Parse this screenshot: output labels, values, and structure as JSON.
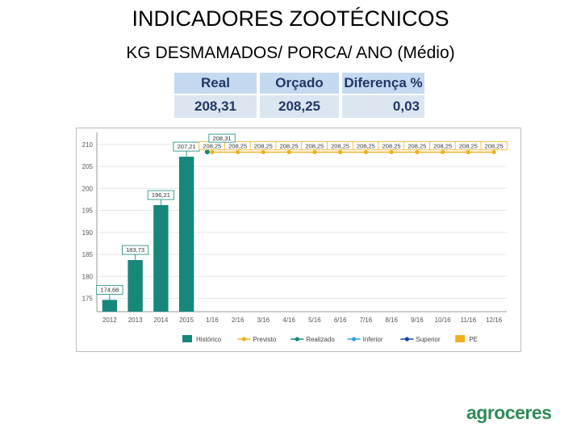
{
  "header": {
    "title": "INDICADORES ZOOTÉCNICOS",
    "subtitle": "KG DESMAMADOS/ PORCA/ ANO (Médio)"
  },
  "summary_table": {
    "headers": [
      "Real",
      "Orçado",
      "Diferença %"
    ],
    "values": [
      "208,31",
      "208,25",
      "0,03"
    ]
  },
  "logo_text": "agroceres",
  "chart_data": {
    "type": "bar",
    "title": "",
    "xlabel": "",
    "ylabel": "",
    "ylim": [
      172,
      212
    ],
    "y_ticks": [
      175,
      180,
      185,
      190,
      195,
      200,
      205,
      210
    ],
    "y_tick_labels": [
      "175",
      "180",
      "185",
      "190",
      "195",
      "200",
      "205",
      "210"
    ],
    "categories": [
      "2012",
      "2013",
      "2014",
      "2015",
      "1/16",
      "2/16",
      "3/16",
      "4/16",
      "5/16",
      "6/16",
      "7/16",
      "8/16",
      "9/16",
      "10/16",
      "11/16",
      "12/16"
    ],
    "series": [
      {
        "name": "Histórico",
        "type": "bar",
        "color": "#17877c",
        "values": [
          174.68,
          183.73,
          196.21,
          207.21,
          null,
          null,
          null,
          null,
          null,
          null,
          null,
          null,
          null,
          null,
          null,
          null
        ],
        "labels": [
          "174,68",
          "183,73",
          "196,21",
          "207,21",
          "",
          "",
          "",
          "",
          "",
          "",
          "",
          "",
          "",
          "",
          "",
          ""
        ]
      },
      {
        "name": "Previsto",
        "type": "line",
        "color": "#f0b020",
        "values": [
          null,
          null,
          null,
          null,
          208.25,
          208.25,
          208.25,
          208.25,
          208.25,
          208.25,
          208.25,
          208.25,
          208.25,
          208.25,
          208.25,
          208.25
        ],
        "labels": [
          "",
          "",
          "",
          "",
          "208,25",
          "208,25",
          "208,25",
          "208,25",
          "208,25",
          "208,25",
          "208,25",
          "208,25",
          "208,25",
          "208,25",
          "208,25",
          "208,25"
        ]
      },
      {
        "name": "Realizado",
        "type": "point",
        "color": "#17877c",
        "values": [
          null,
          null,
          null,
          null,
          208.31,
          null,
          null,
          null,
          null,
          null,
          null,
          null,
          null,
          null,
          null,
          null
        ],
        "labels": [
          "",
          "",
          "",
          "",
          "208,31",
          "",
          "",
          "",
          "",
          "",
          "",
          "",
          "",
          "",
          "",
          ""
        ]
      }
    ],
    "legend": {
      "position": "bottom",
      "entries": [
        {
          "name": "Histórico",
          "kind": "rect",
          "color": "#17877c"
        },
        {
          "name": "Previsto",
          "kind": "line",
          "color": "#f0b020"
        },
        {
          "name": "Realizado",
          "kind": "line",
          "color": "#17877c"
        },
        {
          "name": "Inferior",
          "kind": "line",
          "color": "#2ea5d8"
        },
        {
          "name": "Superior",
          "kind": "line",
          "color": "#1a3fb0"
        },
        {
          "name": "PE",
          "kind": "rect",
          "color": "#f0b020"
        }
      ]
    },
    "grid": true
  }
}
